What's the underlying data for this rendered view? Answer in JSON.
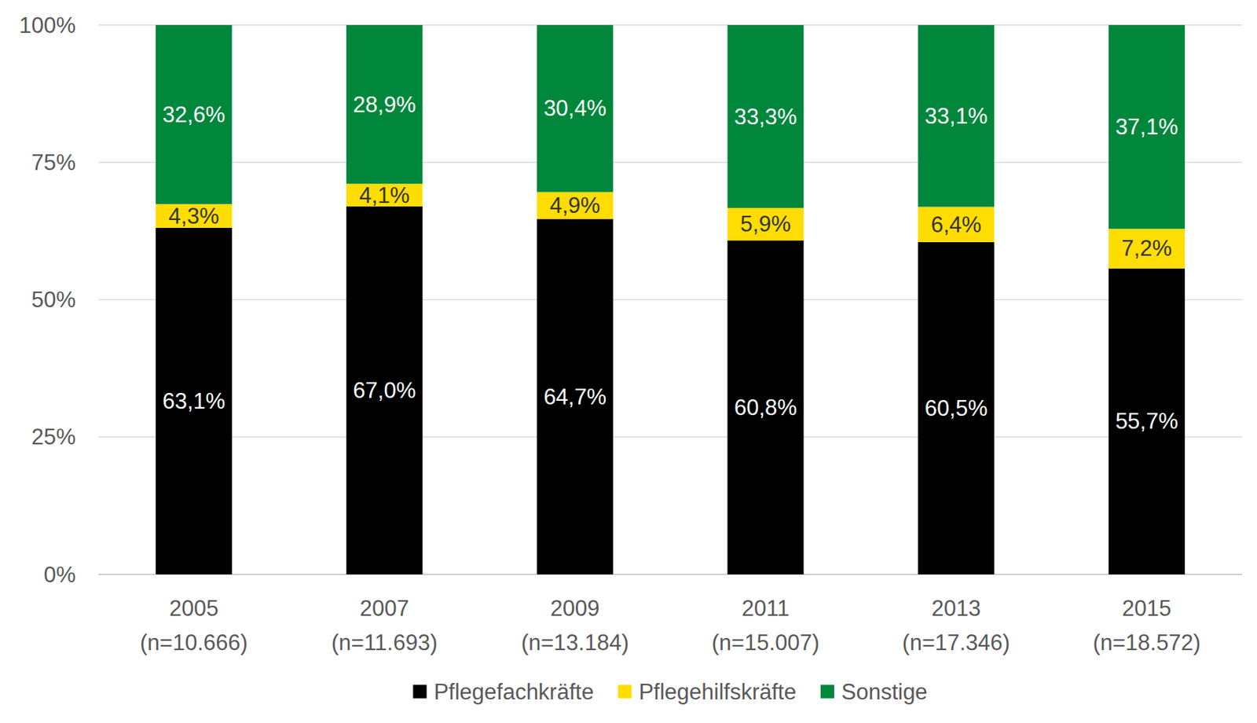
{
  "chart_data": {
    "type": "bar",
    "stacked": true,
    "data_labels": true,
    "grid": true,
    "legend": "bottom",
    "categories": [
      "2005 (n=10.666)",
      "2007 (n=11.693)",
      "2009 (n=13.184)",
      "2011 (n=15.007)",
      "2013 (n=17.346)",
      "2015 (n=18.572)"
    ],
    "ylim": [
      0,
      100
    ],
    "yticks": [
      {
        "value": 0,
        "label": "0%"
      },
      {
        "value": 25,
        "label": "25%"
      },
      {
        "value": 50,
        "label": "50%"
      },
      {
        "value": 75,
        "label": "75%"
      },
      {
        "value": 100,
        "label": "100%"
      }
    ],
    "series": [
      {
        "name": "Pflegefachkräfte",
        "color": "#000000",
        "values": [
          63.1,
          67.0,
          64.7,
          60.8,
          60.5,
          55.7
        ],
        "value_labels": [
          "63,1%",
          "67,0%",
          "64,7%",
          "60,8%",
          "60,5%",
          "55,7%"
        ]
      },
      {
        "name": "Pflegehilfskräfte",
        "color": "#ffdd00",
        "values": [
          4.3,
          4.1,
          4.9,
          5.9,
          6.4,
          7.2
        ],
        "value_labels": [
          "4,3%",
          "4,1%",
          "4,9%",
          "5,9%",
          "6,4%",
          "7,2%"
        ]
      },
      {
        "name": "Sonstige",
        "color": "#00873c",
        "values": [
          32.6,
          28.9,
          30.4,
          33.3,
          33.1,
          37.1
        ],
        "value_labels": [
          "32,6%",
          "28,9%",
          "30,4%",
          "33,3%",
          "33,1%",
          "37,1%"
        ]
      }
    ]
  }
}
